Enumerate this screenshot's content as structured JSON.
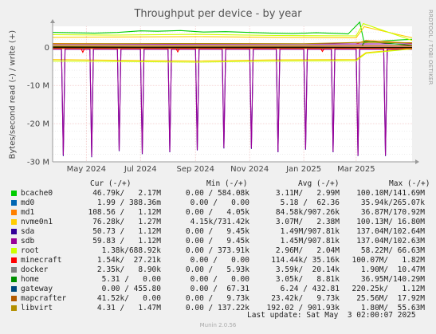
{
  "watermark": "RRDTOOL / TOBI OETIKER",
  "footer": "Munin 2.0.56",
  "last_update": "Last update: Sat May  3 02:00:07 2025",
  "legend": {
    "headers": [
      "Cur (-/+)",
      "Min (-/+)",
      "Avg (-/+)",
      "Max (-/+)"
    ],
    "rows": [
      {
        "name": "bcache0",
        "color": "#00cc00",
        "cur": "46.79k/   2.17M",
        "min": "0.00 / 584.08k",
        "avg": "3.11M/   2.99M",
        "max": "100.10M/141.69M"
      },
      {
        "name": "md0",
        "color": "#0066b3",
        "cur": "1.99 / 388.36m",
        "min": "0.00 /   0.00",
        "avg": "5.18 /  62.36",
        "max": "35.94k/265.07k"
      },
      {
        "name": "md1",
        "color": "#ff8000",
        "cur": "108.56 /   1.12M",
        "min": "0.00 /   4.05k",
        "avg": "84.58k/907.26k",
        "max": "36.87M/170.92M"
      },
      {
        "name": "nvme0n1",
        "color": "#ffcc00",
        "cur": "76.28k/   1.27M",
        "min": "4.15k/731.42k",
        "avg": "3.07M/   2.38M",
        "max": "100.13M/ 16.80M"
      },
      {
        "name": "sda",
        "color": "#330099",
        "cur": "50.73 /   1.12M",
        "min": "0.00 /   9.45k",
        "avg": "1.49M/907.81k",
        "max": "137.04M/102.64M"
      },
      {
        "name": "sdb",
        "color": "#990099",
        "cur": "59.83 /   1.12M",
        "min": "0.00 /   9.45k",
        "avg": "1.45M/907.81k",
        "max": "137.04M/102.63M"
      },
      {
        "name": "root",
        "color": "#ccff00",
        "cur": "1.38k/688.92k",
        "min": "0.00 / 373.91k",
        "avg": "2.96M/   2.04M",
        "max": "58.22M/ 66.63M"
      },
      {
        "name": "minecraft",
        "color": "#ff0000",
        "cur": "1.54k/  27.21k",
        "min": "0.00 /   0.00",
        "avg": "114.44k/ 35.16k",
        "max": "100.07M/   1.82M"
      },
      {
        "name": "docker",
        "color": "#808080",
        "cur": "2.35k/   8.90k",
        "min": "0.00 /   5.93k",
        "avg": "3.59k/  20.14k",
        "max": "1.90M/  10.47M"
      },
      {
        "name": "home",
        "color": "#008f00",
        "cur": "5.31 /   0.00",
        "min": "0.00 /   0.00",
        "avg": "3.05k/   8.81k",
        "max": "36.95M/140.29M"
      },
      {
        "name": "gateway",
        "color": "#00487d",
        "cur": "0.00 / 455.80",
        "min": "0.00 /  67.31",
        "avg": "6.24 / 432.81",
        "max": "220.25k/   1.12M"
      },
      {
        "name": "mapcrafter",
        "color": "#b35a00",
        "cur": "41.52k/   0.00",
        "min": "0.00 /   9.73k",
        "avg": "23.42k/   9.73k",
        "max": "25.56M/  17.92M"
      },
      {
        "name": "libvirt",
        "color": "#b38f00",
        "cur": "4.31 /   1.47M",
        "min": "0.00 / 137.22k",
        "avg": "192.02 / 901.93k",
        "max": "1.80M/  55.63M"
      }
    ]
  },
  "chart_data": {
    "type": "line",
    "title": "Throughput per device - by year",
    "ylabel": "Bytes/second read (-) / write (+)",
    "yunit": "M",
    "ylim": [
      -30,
      5.5
    ],
    "yticks": [
      -30,
      -20,
      -10,
      0
    ],
    "ytick_labels": [
      "-30 M",
      "-20 M",
      "-10 M",
      "0"
    ],
    "xlim": [
      "2024-03-24",
      "2025-05-03"
    ],
    "xticks": [
      "2024-05-01",
      "2024-07-01",
      "2024-09-01",
      "2024-11-01",
      "2025-01-01",
      "2025-03-01"
    ],
    "xtick_labels": [
      "May 2024",
      "Jul 2024",
      "Sep 2024",
      "Nov 2024",
      "Jan 2025",
      "Mar 2025"
    ],
    "grid": true,
    "series": [
      {
        "name": "bcache0",
        "color": "#00cc00",
        "write": {
          "x": [
            "2024-03-24",
            "2024-04-15",
            "2024-05-10",
            "2024-06-05",
            "2024-07-01",
            "2024-07-20",
            "2024-08-15",
            "2024-09-10",
            "2024-10-05",
            "2024-11-01",
            "2024-11-25",
            "2024-12-20",
            "2025-01-15",
            "2025-02-10",
            "2025-02-20",
            "2025-03-05",
            "2025-03-10",
            "2025-03-20",
            "2025-04-10",
            "2025-05-03"
          ],
          "y": [
            3.9,
            3.8,
            3.7,
            3.9,
            4.3,
            4.2,
            4.4,
            4.0,
            4.1,
            3.9,
            3.7,
            3.6,
            3.8,
            3.6,
            3.5,
            6.6,
            1.2,
            1.5,
            1.8,
            2.1
          ]
        },
        "read": {
          "x": [
            "2024-03-24",
            "2024-06-01",
            "2024-09-01",
            "2024-12-01",
            "2025-03-01",
            "2025-05-03"
          ],
          "y": [
            -0.25,
            -0.3,
            -0.3,
            -0.3,
            -0.25,
            -0.2
          ]
        }
      },
      {
        "name": "md1",
        "color": "#ff8000",
        "write": {
          "x": [
            "2024-03-24",
            "2024-07-01",
            "2024-10-01",
            "2025-01-01",
            "2025-03-01",
            "2025-03-12",
            "2025-05-03"
          ],
          "y": [
            1.0,
            0.9,
            0.95,
            0.9,
            0.9,
            1.8,
            1.1
          ]
        },
        "read": {
          "x": [
            "2024-03-24",
            "2025-05-03"
          ],
          "y": [
            -0.1,
            -0.1
          ]
        }
      },
      {
        "name": "nvme0n1",
        "color": "#ffcc00",
        "write": {
          "x": [
            "2024-03-24",
            "2024-06-01",
            "2024-09-01",
            "2024-12-01",
            "2025-03-01",
            "2025-03-10",
            "2025-05-03"
          ],
          "y": [
            2.6,
            2.7,
            2.8,
            2.6,
            2.5,
            5.4,
            2.5
          ]
        },
        "read": {
          "x": [
            "2024-03-24",
            "2024-06-01",
            "2024-09-01",
            "2024-12-01",
            "2025-03-01",
            "2025-03-12",
            "2025-05-03"
          ],
          "y": [
            -3.2,
            -3.4,
            -3.6,
            -3.3,
            -3.2,
            -1.4,
            -0.3
          ]
        }
      },
      {
        "name": "sda",
        "color": "#330099",
        "write": {
          "x": [
            "2024-03-24",
            "2025-05-03"
          ],
          "y": [
            0.8,
            0.9
          ]
        },
        "read": {
          "x": [
            "2024-03-24",
            "2024-04-03",
            "2024-04-05",
            "2024-04-07",
            "2024-05-05",
            "2024-05-07",
            "2024-05-09",
            "2024-06-05",
            "2024-06-07",
            "2024-06-09",
            "2024-07-01",
            "2024-07-03",
            "2024-07-05",
            "2024-08-01",
            "2024-08-03",
            "2024-08-05",
            "2024-09-01",
            "2024-09-03",
            "2024-09-05",
            "2024-10-01",
            "2024-10-03",
            "2024-10-05",
            "2024-11-01",
            "2024-11-03",
            "2024-11-05",
            "2024-12-01",
            "2024-12-03",
            "2024-12-05",
            "2025-01-01",
            "2025-01-03",
            "2025-01-05",
            "2025-02-01",
            "2025-02-03",
            "2025-02-05",
            "2025-03-01",
            "2025-03-03",
            "2025-03-05",
            "2025-04-01",
            "2025-04-03",
            "2025-04-05",
            "2025-05-03"
          ],
          "y": [
            -0.5,
            -0.5,
            -28.5,
            -0.5,
            -0.5,
            -28.8,
            -0.5,
            -0.5,
            -27.2,
            -0.5,
            -0.5,
            -28.0,
            -0.5,
            -0.5,
            -27.5,
            -0.5,
            -0.5,
            -27.0,
            -0.5,
            -0.5,
            -26.5,
            -0.5,
            -0.5,
            -26.6,
            -0.5,
            -0.5,
            -27.5,
            -0.5,
            -0.5,
            -26.8,
            -0.5,
            -0.5,
            -27.5,
            -0.5,
            -0.5,
            -28.5,
            -0.5,
            -0.5,
            -28.5,
            -0.5,
            -0.5
          ]
        }
      },
      {
        "name": "sdb",
        "color": "#990099",
        "write": {
          "x": [
            "2024-03-24",
            "2025-05-03"
          ],
          "y": [
            0.8,
            0.9
          ]
        },
        "read": {
          "x": [
            "2024-03-24",
            "2024-04-03",
            "2024-04-05",
            "2024-04-07",
            "2024-05-05",
            "2024-05-07",
            "2024-05-09",
            "2024-06-05",
            "2024-06-07",
            "2024-06-09",
            "2024-07-01",
            "2024-07-03",
            "2024-07-05",
            "2024-08-01",
            "2024-08-03",
            "2024-08-05",
            "2024-09-01",
            "2024-09-03",
            "2024-09-05",
            "2024-10-01",
            "2024-10-03",
            "2024-10-05",
            "2024-11-01",
            "2024-11-03",
            "2024-11-05",
            "2024-12-01",
            "2024-12-03",
            "2024-12-05",
            "2025-01-01",
            "2025-01-03",
            "2025-01-05",
            "2025-02-01",
            "2025-02-03",
            "2025-02-05",
            "2025-03-01",
            "2025-03-03",
            "2025-03-05",
            "2025-04-01",
            "2025-04-03",
            "2025-04-05",
            "2025-05-03"
          ],
          "y": [
            -0.5,
            -0.5,
            -28.2,
            -0.5,
            -0.5,
            -28.6,
            -0.5,
            -0.5,
            -27.0,
            -0.5,
            -0.5,
            -27.8,
            -0.5,
            -0.5,
            -27.3,
            -0.5,
            -0.5,
            -26.8,
            -0.5,
            -0.5,
            -26.3,
            -0.5,
            -0.5,
            -26.4,
            -0.5,
            -0.5,
            -27.3,
            -0.5,
            -0.5,
            -26.6,
            -0.5,
            -0.5,
            -27.3,
            -0.5,
            -0.5,
            -28.3,
            -0.5,
            -0.5,
            -28.3,
            -0.5,
            -0.5
          ]
        }
      },
      {
        "name": "root",
        "color": "#ccff00",
        "write": {
          "x": [
            "2024-03-24",
            "2024-06-01",
            "2024-09-01",
            "2024-12-01",
            "2025-03-01",
            "2025-03-09",
            "2025-05-03"
          ],
          "y": [
            3.3,
            3.2,
            3.4,
            3.1,
            3.0,
            6.2,
            1.8
          ]
        },
        "read": {
          "x": [
            "2024-03-24",
            "2024-06-01",
            "2024-09-01",
            "2024-12-01",
            "2025-03-01",
            "2025-03-12",
            "2025-05-03"
          ],
          "y": [
            -3.6,
            -3.7,
            -3.9,
            -3.6,
            -3.5,
            -1.6,
            -0.4
          ]
        }
      },
      {
        "name": "minecraft",
        "color": "#ff0000",
        "write": {
          "x": [
            "2024-03-24",
            "2025-05-03"
          ],
          "y": [
            0.05,
            0.05
          ]
        },
        "read": {
          "x": [
            "2024-03-24",
            "2024-04-25",
            "2024-04-27",
            "2024-04-29",
            "2024-08-10",
            "2024-08-12",
            "2024-08-14",
            "2025-01-20",
            "2025-01-22",
            "2025-01-24",
            "2025-05-03"
          ],
          "y": [
            -0.3,
            -0.3,
            -1.3,
            -0.3,
            -0.3,
            -1.2,
            -0.3,
            -0.3,
            -1.1,
            -0.3,
            -0.3
          ]
        }
      },
      {
        "name": "home",
        "color": "#008f00",
        "write": {
          "x": [
            "2024-03-24",
            "2024-07-01",
            "2025-01-01",
            "2025-03-08",
            "2025-03-10",
            "2025-05-03"
          ],
          "y": [
            0.3,
            0.35,
            0.35,
            0.4,
            1.6,
            0.5
          ]
        },
        "read": {
          "x": [
            "2024-03-24",
            "2025-05-03"
          ],
          "y": [
            -0.05,
            -0.05
          ]
        }
      },
      {
        "name": "mapcrafter",
        "color": "#b35a00",
        "write": {
          "x": [
            "2024-03-24",
            "2025-05-03"
          ],
          "y": [
            0.4,
            0.4
          ]
        },
        "read": {
          "x": [
            "2024-03-24",
            "2025-05-03"
          ],
          "y": [
            -0.2,
            -0.2
          ]
        }
      },
      {
        "name": "libvirt",
        "color": "#b38f00",
        "write": {
          "x": [
            "2024-03-24",
            "2024-08-01",
            "2025-01-01",
            "2025-03-10",
            "2025-05-03"
          ],
          "y": [
            0.9,
            1.0,
            0.95,
            1.3,
            1.2
          ]
        },
        "read": {
          "x": [
            "2024-03-24",
            "2025-05-03"
          ],
          "y": [
            -0.02,
            -0.02
          ]
        }
      }
    ]
  }
}
